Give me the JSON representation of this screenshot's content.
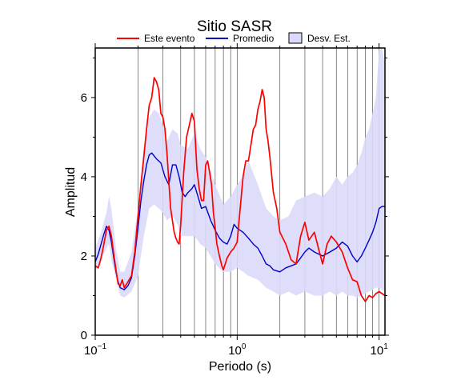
{
  "chart_data": {
    "type": "line",
    "title": "Sitio SASR",
    "xlabel": "Periodo (s)",
    "ylabel": "Amplitud",
    "x_scale": "log",
    "xlim": [
      0.1,
      11
    ],
    "ylim": [
      0,
      7.25
    ],
    "x_ticks": [
      {
        "value": 0.1,
        "base": "10",
        "exp": "−1"
      },
      {
        "value": 1,
        "base": "10",
        "exp": "0"
      },
      {
        "value": 10,
        "base": "10",
        "exp": "1"
      }
    ],
    "y_ticks": [
      {
        "value": 0,
        "label": "0"
      },
      {
        "value": 2,
        "label": "2"
      },
      {
        "value": 4,
        "label": "4"
      },
      {
        "value": 6,
        "label": "6"
      }
    ],
    "grid": "vertical log grid",
    "legend_position": "top",
    "colors": {
      "event": "#ff0000",
      "average": "#0000cc",
      "band": "#dadafa",
      "band_edge": "#000000"
    },
    "series": [
      {
        "name": "Este evento",
        "color": "#ff0000",
        "points": [
          [
            0.1,
            1.75
          ],
          [
            0.105,
            1.7
          ],
          [
            0.11,
            1.95
          ],
          [
            0.115,
            2.3
          ],
          [
            0.12,
            2.65
          ],
          [
            0.125,
            2.75
          ],
          [
            0.13,
            2.5
          ],
          [
            0.135,
            2.05
          ],
          [
            0.14,
            1.65
          ],
          [
            0.145,
            1.3
          ],
          [
            0.15,
            1.25
          ],
          [
            0.155,
            1.4
          ],
          [
            0.16,
            1.2
          ],
          [
            0.17,
            1.35
          ],
          [
            0.18,
            1.5
          ],
          [
            0.19,
            2.1
          ],
          [
            0.2,
            3.0
          ],
          [
            0.21,
            3.8
          ],
          [
            0.22,
            4.5
          ],
          [
            0.23,
            5.2
          ],
          [
            0.24,
            5.8
          ],
          [
            0.25,
            6.0
          ],
          [
            0.26,
            6.5
          ],
          [
            0.27,
            6.4
          ],
          [
            0.28,
            6.2
          ],
          [
            0.29,
            5.6
          ],
          [
            0.3,
            5.5
          ],
          [
            0.31,
            5.2
          ],
          [
            0.32,
            4.6
          ],
          [
            0.33,
            3.9
          ],
          [
            0.34,
            3.2
          ],
          [
            0.36,
            2.6
          ],
          [
            0.37,
            2.45
          ],
          [
            0.38,
            2.35
          ],
          [
            0.39,
            2.3
          ],
          [
            0.4,
            2.8
          ],
          [
            0.42,
            4.1
          ],
          [
            0.44,
            5.0
          ],
          [
            0.46,
            5.3
          ],
          [
            0.48,
            5.6
          ],
          [
            0.5,
            5.4
          ],
          [
            0.52,
            4.2
          ],
          [
            0.54,
            3.7
          ],
          [
            0.56,
            3.4
          ],
          [
            0.58,
            3.4
          ],
          [
            0.6,
            4.3
          ],
          [
            0.62,
            4.4
          ],
          [
            0.64,
            4.1
          ],
          [
            0.66,
            3.8
          ],
          [
            0.68,
            3.1
          ],
          [
            0.7,
            2.7
          ],
          [
            0.72,
            2.3
          ],
          [
            0.75,
            2.0
          ],
          [
            0.78,
            1.75
          ],
          [
            0.8,
            1.65
          ],
          [
            0.85,
            1.95
          ],
          [
            0.9,
            2.1
          ],
          [
            0.95,
            2.2
          ],
          [
            1.0,
            2.35
          ],
          [
            1.05,
            3.2
          ],
          [
            1.1,
            4.0
          ],
          [
            1.15,
            4.4
          ],
          [
            1.2,
            4.4
          ],
          [
            1.25,
            4.8
          ],
          [
            1.3,
            5.2
          ],
          [
            1.35,
            5.3
          ],
          [
            1.4,
            5.7
          ],
          [
            1.45,
            5.9
          ],
          [
            1.5,
            6.2
          ],
          [
            1.55,
            6.0
          ],
          [
            1.6,
            5.2
          ],
          [
            1.65,
            4.9
          ],
          [
            1.7,
            4.5
          ],
          [
            1.8,
            3.6
          ],
          [
            1.9,
            3.2
          ],
          [
            2.0,
            2.6
          ],
          [
            2.2,
            2.3
          ],
          [
            2.4,
            1.9
          ],
          [
            2.6,
            1.8
          ],
          [
            2.8,
            2.5
          ],
          [
            3.0,
            2.85
          ],
          [
            3.2,
            2.4
          ],
          [
            3.5,
            2.6
          ],
          [
            3.8,
            2.1
          ],
          [
            4.0,
            1.8
          ],
          [
            4.3,
            2.3
          ],
          [
            4.6,
            2.5
          ],
          [
            5.0,
            2.35
          ],
          [
            5.5,
            2.1
          ],
          [
            6.0,
            1.7
          ],
          [
            6.5,
            1.4
          ],
          [
            7.0,
            1.35
          ],
          [
            7.5,
            1.0
          ],
          [
            8.0,
            0.85
          ],
          [
            8.5,
            1.0
          ],
          [
            9.0,
            0.95
          ],
          [
            9.5,
            1.05
          ],
          [
            10.0,
            1.1
          ],
          [
            10.5,
            1.05
          ],
          [
            11.0,
            1.0
          ]
        ]
      },
      {
        "name": "Promedio",
        "color": "#0000cc",
        "points": [
          [
            0.1,
            1.85
          ],
          [
            0.105,
            2.05
          ],
          [
            0.11,
            2.3
          ],
          [
            0.115,
            2.55
          ],
          [
            0.12,
            2.75
          ],
          [
            0.125,
            2.65
          ],
          [
            0.13,
            2.35
          ],
          [
            0.135,
            1.95
          ],
          [
            0.14,
            1.6
          ],
          [
            0.145,
            1.35
          ],
          [
            0.15,
            1.2
          ],
          [
            0.16,
            1.15
          ],
          [
            0.17,
            1.25
          ],
          [
            0.18,
            1.45
          ],
          [
            0.19,
            2.0
          ],
          [
            0.2,
            2.7
          ],
          [
            0.21,
            3.4
          ],
          [
            0.22,
            3.9
          ],
          [
            0.23,
            4.3
          ],
          [
            0.24,
            4.55
          ],
          [
            0.25,
            4.6
          ],
          [
            0.27,
            4.45
          ],
          [
            0.29,
            4.35
          ],
          [
            0.31,
            4.0
          ],
          [
            0.33,
            3.8
          ],
          [
            0.35,
            4.3
          ],
          [
            0.37,
            4.3
          ],
          [
            0.39,
            4.0
          ],
          [
            0.41,
            3.6
          ],
          [
            0.43,
            3.5
          ],
          [
            0.45,
            3.6
          ],
          [
            0.48,
            3.7
          ],
          [
            0.5,
            3.8
          ],
          [
            0.53,
            3.5
          ],
          [
            0.56,
            3.2
          ],
          [
            0.6,
            3.25
          ],
          [
            0.65,
            2.9
          ],
          [
            0.7,
            2.65
          ],
          [
            0.75,
            2.45
          ],
          [
            0.8,
            2.35
          ],
          [
            0.85,
            2.3
          ],
          [
            0.9,
            2.5
          ],
          [
            0.95,
            2.8
          ],
          [
            1.0,
            2.7
          ],
          [
            1.1,
            2.6
          ],
          [
            1.2,
            2.45
          ],
          [
            1.3,
            2.3
          ],
          [
            1.4,
            2.2
          ],
          [
            1.5,
            2.0
          ],
          [
            1.6,
            1.8
          ],
          [
            1.7,
            1.75
          ],
          [
            1.8,
            1.65
          ],
          [
            2.0,
            1.6
          ],
          [
            2.2,
            1.7
          ],
          [
            2.4,
            1.75
          ],
          [
            2.6,
            1.8
          ],
          [
            2.8,
            1.95
          ],
          [
            3.0,
            2.1
          ],
          [
            3.2,
            2.2
          ],
          [
            3.5,
            2.1
          ],
          [
            4.0,
            2.0
          ],
          [
            4.5,
            2.1
          ],
          [
            5.0,
            2.2
          ],
          [
            5.5,
            2.35
          ],
          [
            6.0,
            2.25
          ],
          [
            6.5,
            2.0
          ],
          [
            7.0,
            1.85
          ],
          [
            7.5,
            2.0
          ],
          [
            8.0,
            2.2
          ],
          [
            8.5,
            2.4
          ],
          [
            9.0,
            2.6
          ],
          [
            9.5,
            2.85
          ],
          [
            10.0,
            3.2
          ],
          [
            10.5,
            3.25
          ],
          [
            11.0,
            3.25
          ]
        ]
      }
    ],
    "band": {
      "name": "Desv. Est.",
      "color": "#dadafa",
      "points": [
        [
          0.1,
          1.6,
          2.2
        ],
        [
          0.11,
          1.9,
          2.6
        ],
        [
          0.12,
          2.2,
          3.1
        ],
        [
          0.125,
          2.3,
          3.5
        ],
        [
          0.13,
          1.9,
          3.2
        ],
        [
          0.14,
          1.4,
          2.2
        ],
        [
          0.15,
          1.0,
          1.6
        ],
        [
          0.16,
          0.95,
          1.6
        ],
        [
          0.18,
          1.1,
          2.1
        ],
        [
          0.2,
          1.5,
          3.2
        ],
        [
          0.22,
          2.5,
          4.8
        ],
        [
          0.24,
          3.2,
          5.5
        ],
        [
          0.26,
          3.3,
          5.7
        ],
        [
          0.28,
          3.2,
          5.6
        ],
        [
          0.3,
          3.1,
          5.3
        ],
        [
          0.32,
          2.9,
          4.9
        ],
        [
          0.35,
          3.0,
          5.2
        ],
        [
          0.38,
          2.8,
          5.1
        ],
        [
          0.4,
          2.5,
          4.8
        ],
        [
          0.45,
          2.5,
          4.7
        ],
        [
          0.5,
          2.5,
          5.1
        ],
        [
          0.55,
          2.3,
          4.7
        ],
        [
          0.6,
          2.2,
          4.5
        ],
        [
          0.7,
          1.8,
          3.8
        ],
        [
          0.8,
          1.6,
          3.3
        ],
        [
          0.9,
          1.6,
          3.5
        ],
        [
          1.0,
          1.7,
          3.8
        ],
        [
          1.1,
          1.6,
          4.0
        ],
        [
          1.2,
          1.5,
          4.4
        ],
        [
          1.4,
          1.4,
          3.8
        ],
        [
          1.6,
          1.2,
          3.2
        ],
        [
          1.8,
          1.1,
          3.0
        ],
        [
          2.0,
          1.0,
          2.9
        ],
        [
          2.3,
          1.1,
          3.0
        ],
        [
          2.6,
          1.0,
          3.4
        ],
        [
          3.0,
          1.1,
          3.5
        ],
        [
          3.5,
          1.0,
          3.6
        ],
        [
          4.0,
          1.0,
          3.5
        ],
        [
          4.5,
          1.1,
          3.7
        ],
        [
          5.0,
          1.0,
          4.0
        ],
        [
          5.5,
          1.1,
          3.8
        ],
        [
          6.0,
          1.0,
          4.0
        ],
        [
          6.5,
          1.0,
          4.1
        ],
        [
          7.0,
          0.95,
          4.3
        ],
        [
          7.5,
          1.0,
          4.6
        ],
        [
          8.0,
          1.05,
          5.0
        ],
        [
          8.5,
          1.1,
          5.2
        ],
        [
          9.0,
          1.15,
          5.6
        ],
        [
          9.5,
          1.2,
          6.0
        ],
        [
          10.0,
          1.2,
          7.2
        ],
        [
          10.5,
          1.15,
          7.25
        ],
        [
          11.0,
          1.1,
          6.8
        ]
      ]
    }
  }
}
